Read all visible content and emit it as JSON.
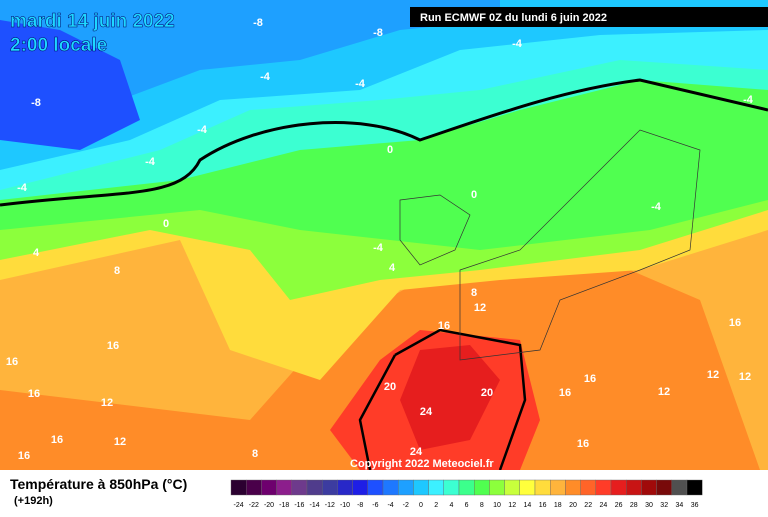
{
  "header": {
    "date": "mardi 14 juin 2022",
    "time": "2:00 locale",
    "run": "Run ECMWF 0Z du lundi 6 juin 2022"
  },
  "copyright": "Copyright 2022 Meteociel.fr",
  "legend": {
    "title": "Température à 850hPa (°C)",
    "lead": "(+192h)",
    "scale": [
      -24,
      -22,
      -20,
      -18,
      -16,
      -14,
      -12,
      -10,
      -8,
      -6,
      -4,
      -2,
      0,
      2,
      4,
      6,
      8,
      10,
      12,
      14,
      16,
      18,
      20,
      22,
      24,
      26,
      28,
      30,
      32,
      34,
      36
    ],
    "colors": [
      "#2b0030",
      "#4a004a",
      "#6e006e",
      "#8c1e8c",
      "#6e3a8c",
      "#503c8c",
      "#3c3ca0",
      "#2828c8",
      "#1e1ee6",
      "#1e50ff",
      "#1e78ff",
      "#1ea0ff",
      "#1ec8ff",
      "#3cf0ff",
      "#3cffd2",
      "#3cff8c",
      "#50ff50",
      "#8cff3c",
      "#c8ff3c",
      "#ffff3c",
      "#ffdc3c",
      "#ffb43c",
      "#ff8c28",
      "#ff6428",
      "#ff3c28",
      "#e61e1e",
      "#c81414",
      "#a00a0a",
      "#780a0a",
      "#505050",
      "#000000"
    ]
  },
  "contour_labels": [
    -8,
    -8,
    -4,
    -8,
    -4,
    -4,
    -4,
    -4,
    -4,
    -4,
    0,
    0,
    0,
    -4,
    -4,
    4,
    4,
    8,
    8,
    12,
    16,
    16,
    16,
    16,
    12,
    16,
    16,
    12,
    20,
    20,
    24,
    24,
    16,
    16,
    12,
    12,
    16,
    8,
    12,
    16
  ]
}
